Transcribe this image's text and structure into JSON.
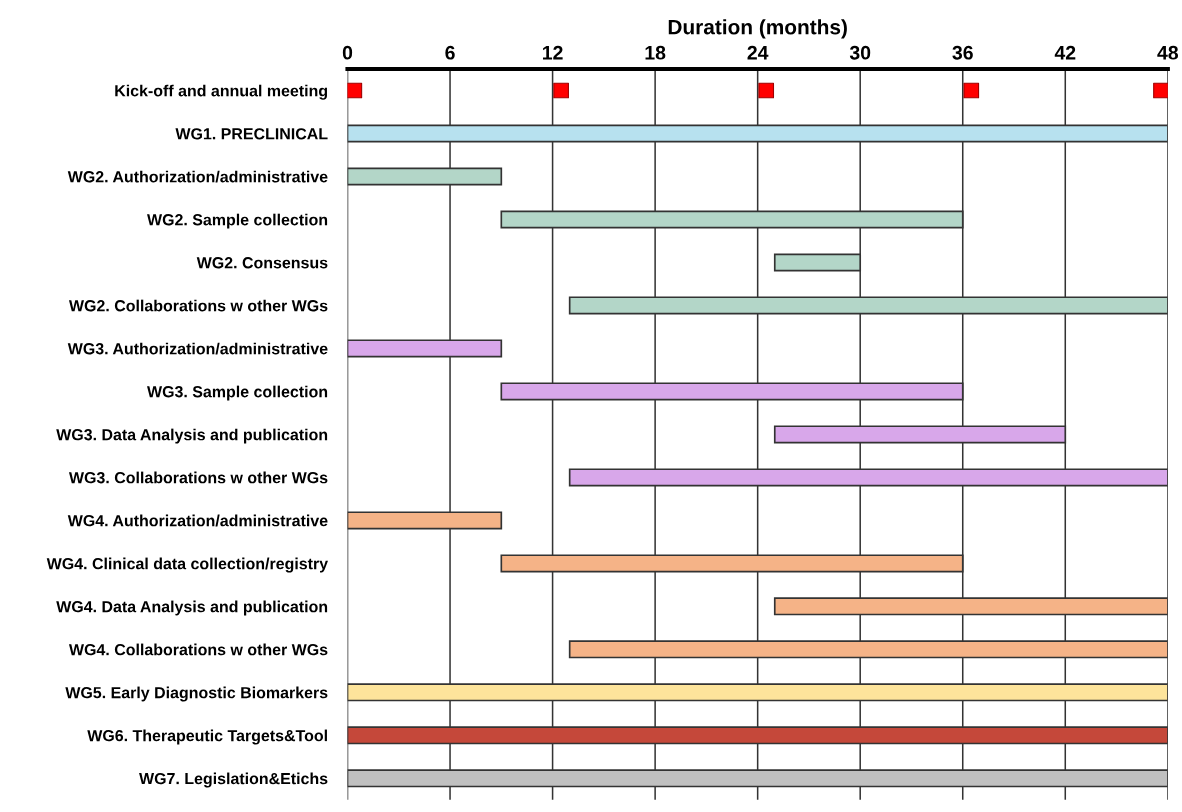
{
  "chart_data": {
    "type": "bar",
    "orientation": "horizontal",
    "xlabel": "Duration (months)",
    "categories": [
      "Kick-off and annual meeting",
      "WG1. PRECLINICAL",
      "WG2. Authorization/administrative",
      "WG2. Sample collection",
      "WG2. Consensus",
      "WG2. Collaborations w other WGs",
      "WG3. Authorization/administrative",
      "WG3. Sample collection",
      "WG3. Data Analysis and publication",
      "WG3. Collaborations w other WGs",
      "WG4. Authorization/administrative",
      "WG4. Clinical data collection/registry",
      "WG4. Data Analysis and publication",
      "WG4. Collaborations w other WGs",
      "WG5. Early Diagnostic Biomarkers",
      "WG6. Therapeutic Targets&Tool",
      "WG7. Legislation&Etichs"
    ],
    "series": [
      {
        "base": [
          null,
          0,
          0,
          9,
          25,
          13,
          0,
          9,
          25,
          13,
          0,
          9,
          25,
          13,
          0,
          0,
          0
        ],
        "values": [
          null,
          48,
          9,
          27,
          5,
          35,
          9,
          27,
          17,
          35,
          9,
          27,
          23,
          35,
          48,
          48,
          48
        ],
        "colors": [
          null,
          "#b7e1ef",
          "#b3d6c8",
          "#b3d6c8",
          "#b3d6c8",
          "#b3d6c8",
          "#d8a7ea",
          "#d8a7ea",
          "#d8a7ea",
          "#d8a7ea",
          "#f5b387",
          "#f5b387",
          "#f5b387",
          "#f5b387",
          "#fde49b",
          "#c5483a",
          "#c0c0c0"
        ]
      },
      {
        "type": "scatter",
        "marker": "square",
        "color": "#ff0000",
        "x": [
          "Kick-off and annual meeting",
          "Kick-off and annual meeting",
          "Kick-off and annual meeting",
          "Kick-off and annual meeting",
          "Kick-off and annual meeting"
        ],
        "values": [
          0.4,
          12.5,
          24.5,
          36.5,
          47.6
        ]
      }
    ],
    "xlim": [
      0,
      48
    ],
    "xticks": [
      0,
      6,
      12,
      18,
      24,
      30,
      36,
      42,
      48
    ],
    "grid": "x"
  }
}
